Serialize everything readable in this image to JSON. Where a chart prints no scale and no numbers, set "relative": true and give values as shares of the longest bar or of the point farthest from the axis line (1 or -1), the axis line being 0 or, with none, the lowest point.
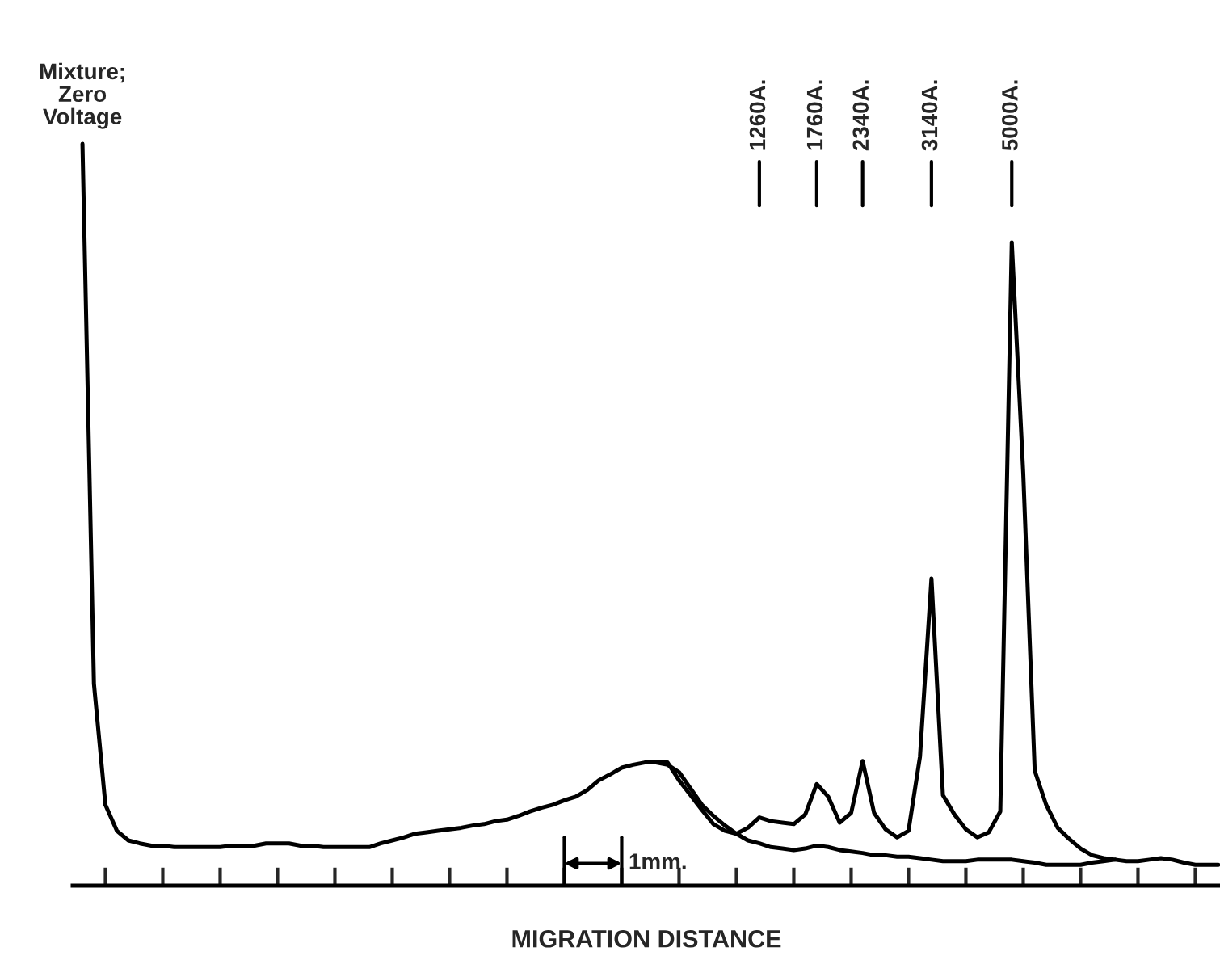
{
  "chart_data": {
    "type": "line",
    "relative": true,
    "xlabel": "MIGRATION DISTANCE",
    "categories": [
      null,
      null,
      null,
      null,
      null,
      null,
      null,
      null,
      null,
      null,
      null,
      null,
      null,
      null,
      null,
      null,
      null,
      null,
      null,
      null,
      null,
      null,
      null,
      null,
      null,
      null,
      null,
      null,
      null,
      null,
      null,
      null,
      null,
      null,
      null,
      null,
      null,
      null,
      null,
      null,
      null,
      null,
      null,
      null,
      null,
      null,
      null,
      null,
      null,
      null,
      null,
      null,
      null,
      null,
      null,
      null,
      null,
      null,
      null,
      null,
      null,
      null,
      null,
      null,
      null,
      null,
      null,
      null,
      null,
      null,
      null,
      null,
      null,
      null,
      null,
      null,
      null,
      null,
      null,
      null,
      null,
      null,
      null,
      null,
      null,
      null,
      null,
      null,
      null,
      null,
      null,
      null,
      null,
      null,
      null,
      null,
      null,
      null,
      null,
      null
    ],
    "grid": false,
    "legend": false,
    "marker": "none",
    "line_style": "solid",
    "series": [
      {
        "color": "#000000",
        "values": [
          1,
          0.272,
          0.109,
          0.074,
          0.061,
          0.057,
          0.054,
          0.054,
          0.052,
          0.052,
          0.052,
          0.052,
          0.052,
          0.054,
          0.054,
          0.054,
          0.057,
          0.057,
          0.057,
          0.054,
          0.054,
          0.052,
          0.052,
          0.052,
          0.052,
          0.052,
          0.057,
          0.061,
          0.065,
          0.07,
          0.072,
          0.074,
          0.076,
          0.078,
          0.081,
          0.083,
          0.087,
          0.089,
          0.094,
          0.1,
          0.105,
          0.109,
          0.115,
          0.12,
          0.129,
          0.142,
          0.15,
          0.159,
          0.163,
          0.166,
          0.166,
          0.166,
          0.142,
          0.122,
          0.102,
          0.083,
          0.074,
          0.07,
          0.078,
          0.092,
          0.087,
          0.085,
          0.083,
          0.096,
          0.137,
          0.12,
          0.085,
          0.098,
          0.168,
          0.098,
          0.076,
          0.065,
          0.074,
          0.174,
          0.414,
          0.122,
          0.096,
          0.076,
          0.065,
          0.072,
          0.1,
          0.867,
          0.556,
          0.155,
          0.109,
          0.078,
          0.063,
          0.05,
          0.041,
          0.037,
          0.035,
          0.033,
          0.033,
          0.035,
          0.037,
          0.035,
          0.031,
          0.028,
          0.028,
          0.028
        ]
      },
      {
        "color": "#000000",
        "values": [
          null,
          null,
          null,
          null,
          null,
          null,
          null,
          null,
          null,
          null,
          null,
          null,
          null,
          null,
          null,
          null,
          null,
          null,
          null,
          null,
          null,
          null,
          null,
          null,
          null,
          null,
          null,
          null,
          null,
          null,
          null,
          null,
          null,
          null,
          null,
          null,
          null,
          null,
          null,
          null,
          null,
          null,
          null,
          null,
          null,
          null,
          null,
          null,
          null,
          null,
          0.166,
          0.163,
          0.153,
          0.131,
          0.109,
          0.094,
          0.081,
          0.07,
          0.061,
          0.057,
          0.052,
          0.05,
          0.048,
          0.05,
          0.054,
          0.052,
          0.048,
          0.046,
          0.044,
          0.041,
          0.041,
          0.039,
          0.039,
          0.037,
          0.035,
          0.033,
          0.033,
          0.033,
          0.035,
          0.035,
          0.035,
          0.035,
          0.033,
          0.031,
          0.028,
          0.028,
          0.028,
          0.028,
          0.031,
          0.033,
          0.035,
          null,
          null,
          null,
          null,
          null,
          null,
          null,
          null,
          null
        ]
      }
    ],
    "annotations": [
      "Mixture;\nZero\nVoltage",
      "1mm.",
      "1260A.",
      "1760A.",
      "2340A.",
      "3140A.",
      "5000A."
    ]
  }
}
